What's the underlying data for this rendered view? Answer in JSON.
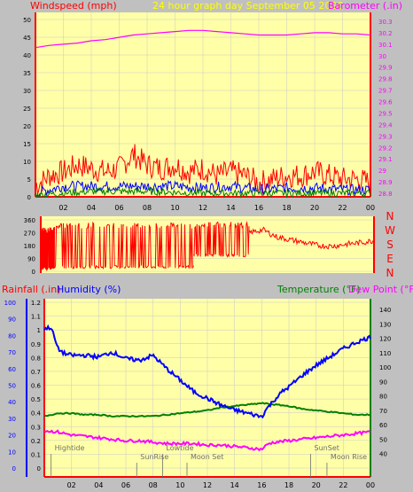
{
  "header": {
    "left_label": "Windspeed (mph)",
    "title": "24 hour graph day   September 05 2020",
    "right_label": "Barometer (.in)"
  },
  "lower_header": {
    "rain_label": "Rainfall (.in)",
    "humidity_label": "Humidity (%)",
    "temp_label": "Temperature (°F)",
    "dew_label": "Dew Point (°F)"
  },
  "colors": {
    "background": "#c0c0c0",
    "plot_bg": "#ffffa8",
    "grid": "#c8c8c8",
    "axis_red": "#ff0000",
    "wind_gust": "#ff0000",
    "wind_avg": "#0000ff",
    "wind_low": "#008000",
    "barometer": "#ff00ff",
    "humidity": "#0000ff",
    "temperature": "#008000",
    "dew_point": "#ff00ff",
    "title_yellow": "#ffff00",
    "events": "#707070"
  },
  "chart_data": [
    {
      "type": "line",
      "name": "wind-barometer",
      "x_ticks": [
        "02",
        "04",
        "06",
        "08",
        "10",
        "12",
        "14",
        "16",
        "18",
        "20",
        "22",
        "00"
      ],
      "left_axis": {
        "range": [
          0,
          50
        ],
        "ticks": [
          "0",
          "5",
          "10",
          "15",
          "20",
          "25",
          "30",
          "35",
          "40",
          "45",
          "50"
        ]
      },
      "right_axis": {
        "range": [
          28.8,
          30.3
        ],
        "ticks": [
          "28.8",
          "28.9",
          "29",
          "29.1",
          "29.2",
          "29.3",
          "29.4",
          "29.5",
          "29.6",
          "29.7",
          "29.8",
          "29.9",
          "30",
          "30.1",
          "30.2",
          "30.3"
        ]
      },
      "barometer": {
        "hours": [
          0,
          1,
          2,
          3,
          4,
          5,
          6,
          7,
          8,
          9,
          10,
          11,
          12,
          13,
          14,
          15,
          16,
          17,
          18,
          19,
          20,
          21,
          22,
          23,
          24
        ],
        "values": [
          30.07,
          30.09,
          30.1,
          30.11,
          30.13,
          30.14,
          30.16,
          30.18,
          30.19,
          30.2,
          30.21,
          30.22,
          30.22,
          30.21,
          30.2,
          30.19,
          30.18,
          30.18,
          30.18,
          30.19,
          30.2,
          30.2,
          30.19,
          30.19,
          30.18
        ]
      },
      "wind_gust": {
        "hours": [
          0,
          1,
          2,
          3,
          4,
          5,
          6,
          7,
          8,
          9,
          10,
          11,
          12,
          13,
          14,
          15,
          16,
          17,
          18,
          19,
          20,
          21,
          22,
          23,
          24
        ],
        "values": [
          3,
          6,
          7,
          9,
          8,
          7,
          8,
          12,
          9,
          8,
          9,
          7,
          8,
          6,
          7,
          6,
          4,
          5,
          6,
          6,
          7,
          6,
          5,
          5,
          4
        ]
      },
      "wind_avg": {
        "hours": [
          0,
          2,
          4,
          6,
          8,
          10,
          12,
          14,
          16,
          18,
          20,
          22,
          24
        ],
        "values": [
          1,
          3,
          3,
          3,
          3,
          3,
          2.5,
          3,
          2,
          2.5,
          2.5,
          2,
          2
        ]
      },
      "wind_low": {
        "hours": [
          0,
          4,
          8,
          12,
          16,
          20,
          24
        ],
        "values": [
          0.5,
          1.5,
          1.5,
          1,
          1,
          1,
          1
        ]
      }
    },
    {
      "type": "line",
      "name": "wind-direction",
      "y_ticks": [
        "360",
        "270",
        "180",
        "90",
        "0"
      ],
      "range": [
        0,
        360
      ],
      "compass": [
        "N",
        "W",
        "S",
        "E",
        "N"
      ],
      "segments": [
        {
          "hours": [
            0,
            1
          ],
          "low": 10,
          "high": 310
        },
        {
          "hours": [
            1,
            6
          ],
          "low": 20,
          "high": 340
        },
        {
          "hours": [
            6,
            11
          ],
          "low": 20,
          "high": 340
        },
        {
          "hours": [
            11,
            15
          ],
          "low": 100,
          "high": 345
        }
      ],
      "trend": {
        "hours": [
          15,
          16,
          17,
          18,
          19,
          20,
          21,
          22,
          23,
          24
        ],
        "values": [
          270,
          290,
          240,
          220,
          200,
          180,
          175,
          190,
          200,
          215
        ]
      }
    },
    {
      "type": "line",
      "name": "humidity-temperature",
      "x_ticks": [
        "02",
        "04",
        "06",
        "08",
        "10",
        "12",
        "14",
        "16",
        "18",
        "20",
        "22",
        "00"
      ],
      "left_axis": {
        "label": "Humidity (%)",
        "range": [
          0,
          100
        ],
        "ticks": [
          "0",
          "10",
          "20",
          "30",
          "40",
          "50",
          "60",
          "70",
          "80",
          "90",
          "100"
        ]
      },
      "rain_axis": {
        "label": "Rainfall (.in)",
        "range": [
          0,
          1.2
        ],
        "ticks": [
          "0",
          "0.1",
          "0.2",
          "0.3",
          "0.4",
          "0.5",
          "0.6",
          "0.7",
          "0.8",
          "0.9",
          "1",
          "1.1",
          "1.2"
        ]
      },
      "right_axis": {
        "label": "Temperature (°F)",
        "range": [
          30,
          145
        ],
        "ticks": [
          "40",
          "50",
          "60",
          "70",
          "80",
          "90",
          "100",
          "110",
          "120",
          "130",
          "140"
        ]
      },
      "humidity": {
        "hours": [
          0,
          0.5,
          1,
          1.5,
          2,
          3,
          4,
          5,
          6,
          7,
          8,
          9,
          10,
          11,
          12,
          13,
          14,
          15,
          16,
          16.3,
          16.8,
          17.5,
          18,
          19,
          20,
          21,
          22,
          23,
          24
        ],
        "values": [
          84,
          85,
          72,
          69,
          68,
          68,
          67,
          70,
          66,
          65,
          68,
          60,
          53,
          46,
          42,
          38,
          35,
          33,
          31,
          35,
          40,
          46,
          49,
          56,
          62,
          67,
          72,
          76,
          79
        ]
      },
      "temperature": {
        "hours": [
          0,
          1,
          2,
          3,
          4,
          5,
          6,
          7,
          8,
          9,
          10,
          11,
          12,
          13,
          14,
          15,
          16,
          17,
          18,
          19,
          20,
          21,
          22,
          23,
          24
        ],
        "values": [
          66,
          68,
          68,
          67,
          67,
          66,
          66,
          66,
          66,
          67,
          68,
          69,
          70,
          72,
          73,
          74,
          75,
          74,
          73,
          71,
          70,
          69,
          68,
          67,
          67
        ]
      },
      "dew_point": {
        "hours": [
          0,
          1,
          2,
          3,
          4,
          5,
          6,
          7,
          8,
          9,
          10,
          11,
          12,
          13,
          14,
          15,
          16,
          16.5,
          17,
          18,
          19,
          20,
          21,
          22,
          23,
          24
        ],
        "values": [
          56,
          55,
          53,
          52,
          51,
          50,
          49,
          49,
          48,
          47,
          47,
          47,
          46,
          46,
          45,
          44,
          43,
          47,
          48,
          49,
          50,
          51,
          52,
          53,
          54,
          55
        ]
      },
      "events": [
        {
          "label": "Hightide",
          "hour": 0.5
        },
        {
          "label": "SunRise",
          "hour": 6.8
        },
        {
          "label": "Lowtide",
          "hour": 8.7
        },
        {
          "label": "Moon Set",
          "hour": 10.5
        },
        {
          "label": "SunSet",
          "hour": 19.6
        },
        {
          "label": "Moon Rise",
          "hour": 20.8
        }
      ]
    }
  ]
}
